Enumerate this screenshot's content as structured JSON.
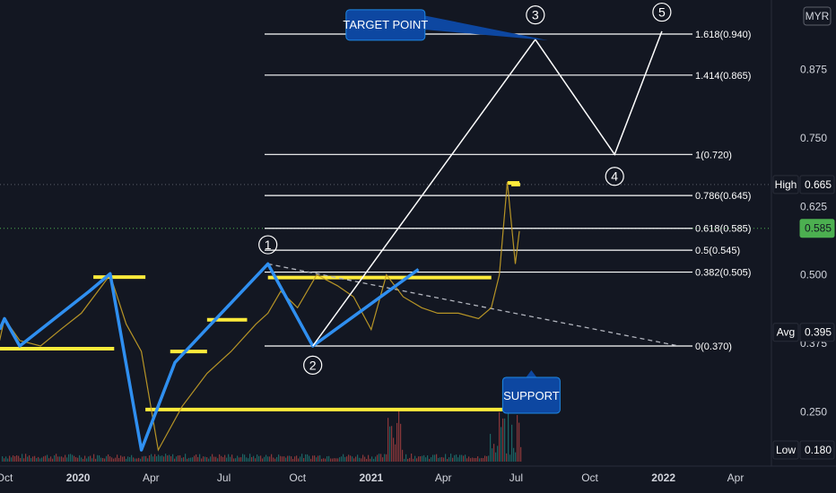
{
  "currency": "MYR",
  "chart_data": {
    "type": "line",
    "price_series": {
      "x": [
        "2019-09-25",
        "2019-10-01",
        "2019-10-20",
        "2019-11-15",
        "2019-12-10",
        "2020-01-05",
        "2020-02-10",
        "2020-03-01",
        "2020-03-20",
        "2020-04-10",
        "2020-05-10",
        "2020-06-10",
        "2020-07-10",
        "2020-08-10",
        "2020-08-25",
        "2020-09-10",
        "2020-10-01",
        "2020-10-25",
        "2020-11-20",
        "2020-12-10",
        "2021-01-01",
        "2021-01-20",
        "2021-02-10",
        "2021-03-05",
        "2021-03-25",
        "2021-04-20",
        "2021-05-15",
        "2021-05-31",
        "2021-06-10",
        "2021-06-20",
        "2021-06-30",
        "2021-07-05"
      ],
      "y": [
        0.38,
        0.42,
        0.38,
        0.37,
        0.4,
        0.43,
        0.5,
        0.41,
        0.36,
        0.18,
        0.26,
        0.32,
        0.36,
        0.41,
        0.43,
        0.47,
        0.44,
        0.5,
        0.48,
        0.46,
        0.4,
        0.5,
        0.46,
        0.44,
        0.43,
        0.43,
        0.42,
        0.44,
        0.5,
        0.67,
        0.52,
        0.58
      ]
    },
    "elliott_wave": {
      "x": [
        "2019-09-25",
        "2019-10-01",
        "2019-10-20",
        "2020-01-15",
        "2020-02-10",
        "2020-03-20",
        "2020-05-01",
        "2020-06-15",
        "2020-08-25",
        "2020-10-20",
        "2021-03-01",
        "2021-07-25",
        "2021-11-01",
        "2021-12-30"
      ],
      "y": [
        0.4,
        0.42,
        0.37,
        0.47,
        0.502,
        0.18,
        0.34,
        0.41,
        0.52,
        0.37,
        0.51,
        0.93,
        0.72,
        0.945
      ]
    },
    "wave_labels": [
      {
        "label": "1",
        "x": "2020-08-25",
        "y": 0.555
      },
      {
        "label": "2",
        "x": "2020-10-20",
        "y": 0.335
      },
      {
        "label": "3",
        "x": "2021-07-25",
        "y": 0.975
      },
      {
        "label": "4",
        "x": "2021-11-01",
        "y": 0.68
      },
      {
        "label": "5",
        "x": "2021-12-30",
        "y": 0.98
      }
    ],
    "fib_levels": [
      {
        "label": "1.618(0.940)",
        "value": 0.94
      },
      {
        "label": "1.414(0.865)",
        "value": 0.865
      },
      {
        "label": "1(0.720)",
        "value": 0.72
      },
      {
        "label": "0.786(0.645)",
        "value": 0.645
      },
      {
        "label": "0.618(0.585)",
        "value": 0.585
      },
      {
        "label": "0.5(0.545)",
        "value": 0.545
      },
      {
        "label": "0.382(0.505)",
        "value": 0.505
      },
      {
        "label": "0(0.370)",
        "value": 0.37
      }
    ],
    "support_lines": [
      {
        "x0": "2020-01-20",
        "x1": "2020-03-25",
        "y": 0.496
      },
      {
        "x0": "2019-09-25",
        "x1": "2020-02-15",
        "y": 0.365
      },
      {
        "x0": "2020-04-25",
        "x1": "2020-06-10",
        "y": 0.36
      },
      {
        "x0": "2020-06-10",
        "x1": "2020-07-30",
        "y": 0.418
      },
      {
        "x0": "2020-03-25",
        "x1": "2021-06-15",
        "y": 0.254
      },
      {
        "x0": "2020-08-25",
        "x1": "2021-05-31",
        "y": 0.495
      },
      {
        "x0": "2021-06-25",
        "x1": "2021-07-06",
        "y": 0.665
      }
    ],
    "annotations": [
      {
        "text": "TARGET POINT",
        "x": "2021-01-20",
        "y": 0.955
      },
      {
        "text": "SUPPORT",
        "x": "2021-07-20",
        "y": 0.28
      }
    ],
    "ylim": [
      0.165,
      1.0
    ],
    "y_ticks": [
      0.25,
      0.375,
      0.5,
      0.625,
      0.75,
      0.875
    ],
    "y_tick_labels": [
      "0.250",
      "0.375",
      "0.500",
      "0.625",
      "0.750",
      "0.875"
    ],
    "x_ticks": [
      {
        "label": "Oct",
        "date": "2019-10-01",
        "bold": false
      },
      {
        "label": "2020",
        "date": "2020-01-01",
        "bold": true
      },
      {
        "label": "Apr",
        "date": "2020-04-01",
        "bold": false
      },
      {
        "label": "Jul",
        "date": "2020-07-01",
        "bold": false
      },
      {
        "label": "Oct",
        "date": "2020-10-01",
        "bold": false
      },
      {
        "label": "2021",
        "date": "2021-01-01",
        "bold": true
      },
      {
        "label": "Apr",
        "date": "2021-04-01",
        "bold": false
      },
      {
        "label": "Jul",
        "date": "2021-07-01",
        "bold": false
      },
      {
        "label": "Oct",
        "date": "2021-10-01",
        "bold": false
      },
      {
        "label": "2022",
        "date": "2022-01-01",
        "bold": true
      },
      {
        "label": "Apr",
        "date": "2022-04-01",
        "bold": false
      }
    ],
    "price_tags": [
      {
        "name": "High",
        "value": "0.665",
        "y": 0.665,
        "color": "#131722",
        "border": "#2a2e39",
        "text_color": "#ffffff"
      },
      {
        "name": "",
        "value": "0.585",
        "y": 0.585,
        "color": "#4caf50",
        "border": "#4caf50",
        "text_color": "#131722"
      },
      {
        "name": "Avg",
        "value": "0.395",
        "y": 0.395,
        "color": "#131722",
        "border": "#2a2e39",
        "text_color": "#ffffff"
      },
      {
        "name": "Low",
        "value": "0.180",
        "y": 0.18,
        "color": "#131722",
        "border": "#2a2e39",
        "text_color": "#ffffff"
      }
    ],
    "colors": {
      "background": "#131722",
      "wave": "#2f8ff0",
      "support": "#ffeb3b",
      "fib": "#ffffff",
      "price": "#c9a227",
      "callout": "#0d47a1"
    }
  }
}
